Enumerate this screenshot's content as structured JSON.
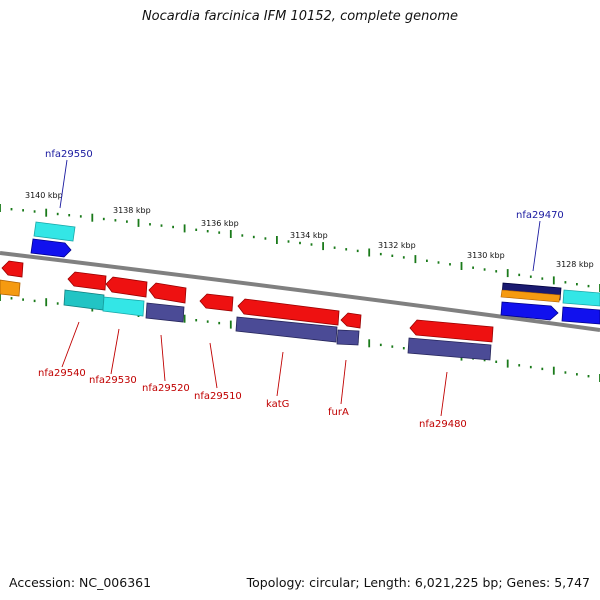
{
  "header": {
    "title": "Nocardia farcinica IFM 10152, complete genome"
  },
  "footer": {
    "accession": "Accession: NC_006361",
    "topology": "Topology: circular; Length: 6,021,225 bp; Genes: 5,747"
  },
  "scale": {
    "ticks": [
      "3140 kbp",
      "3138 kbp",
      "3136 kbp",
      "3134 kbp",
      "3132 kbp",
      "3130 kbp",
      "3128 kbp"
    ]
  },
  "labels": {
    "top": [
      "nfa29550",
      "nfa29470"
    ],
    "bottom": [
      "nfa29540",
      "nfa29530",
      "nfa29520",
      "nfa29510",
      "katG",
      "furA",
      "nfa29480"
    ]
  },
  "colors": {
    "red": "#ee1111",
    "cyan": "#33e6e6",
    "blue": "#1111ee",
    "navy": "#1a1a70",
    "orange": "#f59a10",
    "slate": "#4b4b96",
    "teal": "#22c4c4",
    "backbone": "#888888",
    "tick": "#1a7a1a"
  }
}
